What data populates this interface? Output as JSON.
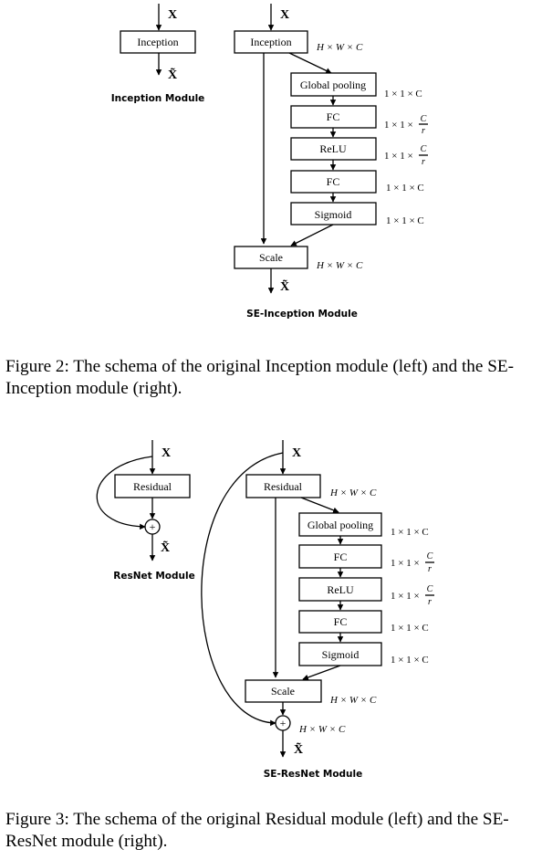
{
  "figure2": {
    "left": {
      "input": "X",
      "box": "Inception",
      "output": "X̃",
      "label": "Inception Module"
    },
    "right": {
      "input": "X",
      "boxes": {
        "inception": "Inception",
        "global_pooling": "Global pooling",
        "fc1": "FC",
        "relu": "ReLU",
        "fc2": "FC",
        "sigmoid": "Sigmoid",
        "scale": "Scale"
      },
      "dims": {
        "inception": "H × W × C",
        "global_pooling": "1 × 1 × C",
        "fc1_prefix": "1 × 1 ×",
        "relu_prefix": "1 × 1 ×",
        "frac_num": "C",
        "frac_den": "r",
        "fc2": "1 × 1 × C",
        "sigmoid": "1 × 1 × C",
        "scale": "H × W × C"
      },
      "output": "X̃",
      "label": "SE-Inception Module"
    },
    "caption": "Figure 2: The schema of the original Inception module (left) and the SE-Inception module (right)."
  },
  "figure3": {
    "left": {
      "input": "X",
      "box": "Residual",
      "plus": "+",
      "output": "X̃",
      "label": "ResNet Module"
    },
    "right": {
      "input": "X",
      "boxes": {
        "residual": "Residual",
        "global_pooling": "Global pooling",
        "fc1": "FC",
        "relu": "ReLU",
        "fc2": "FC",
        "sigmoid": "Sigmoid",
        "scale": "Scale"
      },
      "dims": {
        "residual": "H × W × C",
        "global_pooling": "1 × 1 × C",
        "fc1_prefix": "1 × 1 ×",
        "relu_prefix": "1 × 1 ×",
        "frac_num": "C",
        "frac_den": "r",
        "fc2": "1 × 1 × C",
        "sigmoid": "1 × 1 × C",
        "scale": "H × W × C",
        "sum": "H × W × C"
      },
      "plus": "+",
      "output": "X̃",
      "label": "SE-ResNet Module"
    },
    "caption": "Figure 3: The schema of the original Residual module (left) and the SE-ResNet module (right)."
  }
}
